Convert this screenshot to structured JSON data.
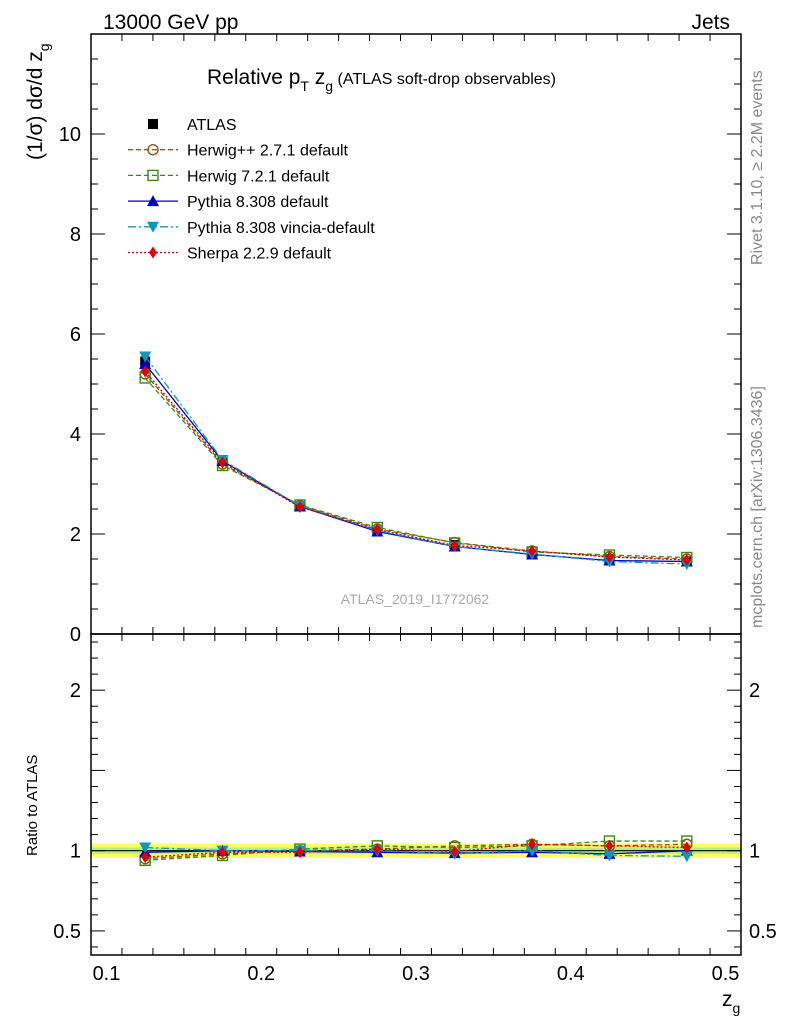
{
  "header": {
    "energy_label": "13000 GeV pp",
    "process_label": "Jets"
  },
  "side_labels": {
    "rivet": "Rivet 3.1.10, ≥ 2.2M events",
    "mcplots": "mcplots.cern.ch [arXiv:1306.3436]"
  },
  "title": {
    "main_prefix": "Relative p",
    "main_sub": "T",
    "main_var": " z",
    "main_var_sub": "g",
    "detail": " (ATLAS soft-drop observables)"
  },
  "watermark": "ATLAS_2019_I1772062",
  "chart_data": [
    {
      "type": "line",
      "panel": "main",
      "ylabel": "(1/σ) dσ/d z_g",
      "ylim": [
        0,
        12
      ],
      "yticks": [
        0,
        2,
        4,
        6,
        8,
        10
      ],
      "ytick_labels": [
        "0",
        "2",
        "4",
        "6",
        "8",
        "10"
      ],
      "xlim": [
        0.09,
        0.51
      ],
      "x": [
        0.125,
        0.175,
        0.225,
        0.275,
        0.325,
        0.375,
        0.425,
        0.475
      ],
      "legend_position": "top-left",
      "series": [
        {
          "name": "ATLAS",
          "color": "#000000",
          "marker": "square-filled",
          "line": "none",
          "values": [
            5.45,
            3.46,
            2.56,
            2.07,
            1.78,
            1.6,
            1.5,
            1.45
          ]
        },
        {
          "name": "Herwig++ 2.7.1 default",
          "color": "#a0520e",
          "marker": "circle-open",
          "line": "dashed",
          "values": [
            5.2,
            3.4,
            2.57,
            2.1,
            1.83,
            1.66,
            1.55,
            1.5
          ]
        },
        {
          "name": "Herwig 7.2.1 default",
          "color": "#3a8a12",
          "marker": "square-open",
          "line": "dashed",
          "values": [
            5.12,
            3.37,
            2.58,
            2.13,
            1.82,
            1.64,
            1.58,
            1.53
          ]
        },
        {
          "name": "Pythia 8.308 default",
          "color": "#0000cc",
          "marker": "triangle-up",
          "line": "solid",
          "values": [
            5.4,
            3.46,
            2.55,
            2.05,
            1.75,
            1.59,
            1.47,
            1.45
          ]
        },
        {
          "name": "Pythia 8.308 vincia-default",
          "color": "#0a99bb",
          "marker": "triangle-down",
          "line": "dashdot",
          "values": [
            5.55,
            3.48,
            2.56,
            2.07,
            1.75,
            1.6,
            1.45,
            1.4
          ]
        },
        {
          "name": "Sherpa 2.2.9 default",
          "color": "#e00000",
          "marker": "diamond",
          "line": "dotted",
          "values": [
            5.25,
            3.43,
            2.54,
            2.09,
            1.77,
            1.66,
            1.54,
            1.48
          ]
        }
      ]
    },
    {
      "type": "line",
      "panel": "ratio",
      "ylabel": "Ratio to ATLAS",
      "xlabel": "z_g",
      "ylim": [
        0.35,
        2.35
      ],
      "yticks": [
        0.5,
        1,
        2
      ],
      "ytick_labels": [
        "0.5",
        "1",
        "2"
      ],
      "xticks": [
        0.1,
        0.2,
        0.3,
        0.4,
        0.5
      ],
      "xtick_labels": [
        "0.1",
        "0.2",
        "0.3",
        "0.4",
        "0.5"
      ],
      "band": {
        "low": 0.98,
        "high": 1.02,
        "color": "#ffff66",
        "inner_color": "#b8f080"
      },
      "x": [
        0.125,
        0.175,
        0.225,
        0.275,
        0.325,
        0.375,
        0.425,
        0.475
      ],
      "series": [
        {
          "name": "Herwig++ 2.7.1 default",
          "color": "#a0520e",
          "marker": "circle-open",
          "line": "dashed",
          "values": [
            0.95,
            0.98,
            1.0,
            1.01,
            1.03,
            1.04,
            1.03,
            1.04
          ]
        },
        {
          "name": "Herwig 7.2.1 default",
          "color": "#3a8a12",
          "marker": "square-open",
          "line": "dashed",
          "values": [
            0.94,
            0.97,
            1.01,
            1.03,
            1.02,
            1.03,
            1.06,
            1.06
          ]
        },
        {
          "name": "Pythia 8.308 default",
          "color": "#0000cc",
          "marker": "triangle-up",
          "line": "solid",
          "values": [
            0.99,
            1.0,
            0.995,
            0.99,
            0.985,
            0.99,
            0.98,
            1.0
          ]
        },
        {
          "name": "Pythia 8.308 vincia-default",
          "color": "#0a99bb",
          "marker": "triangle-down",
          "line": "dashdot",
          "values": [
            1.02,
            1.0,
            1.0,
            1.0,
            0.98,
            1.0,
            0.97,
            0.965
          ]
        },
        {
          "name": "Sherpa 2.2.9 default",
          "color": "#e00000",
          "marker": "diamond",
          "line": "dotted",
          "values": [
            0.96,
            0.99,
            0.99,
            1.01,
            0.995,
            1.04,
            1.03,
            1.02
          ]
        }
      ]
    }
  ]
}
